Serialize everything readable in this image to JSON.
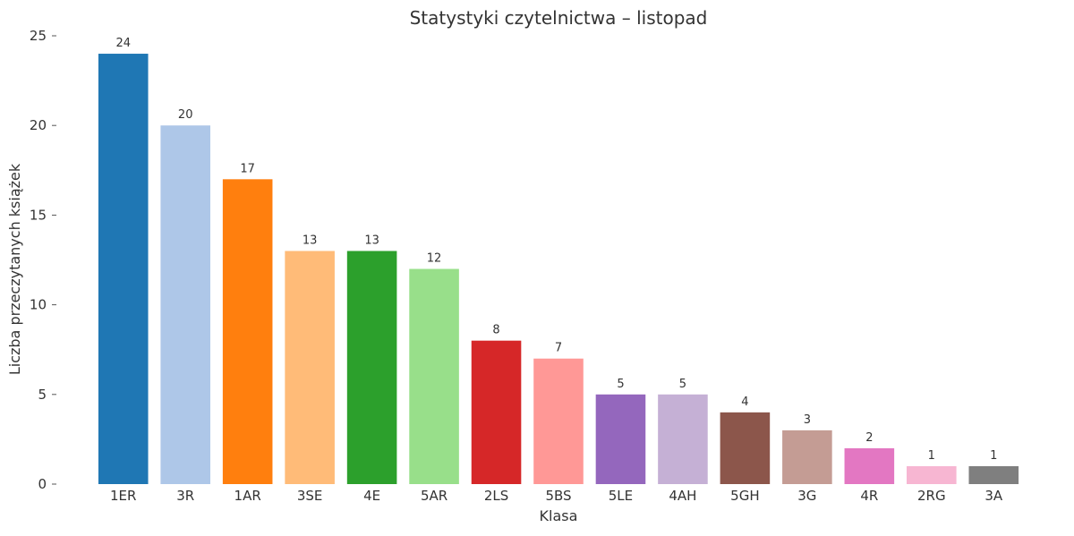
{
  "chart_data": {
    "type": "bar",
    "title": "Statystyki czytelnictwa – listopad",
    "xlabel": "Klasa",
    "ylabel": "Liczba przeczytanych książek",
    "categories": [
      "1ER",
      "3R",
      "1AR",
      "3SE",
      "4E",
      "5AR",
      "2LS",
      "5BS",
      "5LE",
      "4AH",
      "5GH",
      "3G",
      "4R",
      "2RG",
      "3A"
    ],
    "values": [
      24,
      20,
      17,
      13,
      13,
      12,
      8,
      7,
      5,
      5,
      4,
      3,
      2,
      1,
      1
    ],
    "colors": [
      "#1f77b4",
      "#aec7e8",
      "#ff7f0e",
      "#ffbb78",
      "#2ca02c",
      "#98df8a",
      "#d62728",
      "#ff9896",
      "#9467bd",
      "#c5b0d5",
      "#8c564b",
      "#c49c94",
      "#e377c2",
      "#f7b6d2",
      "#7f7f7f"
    ],
    "ylim": [
      0,
      25
    ],
    "yticks": [
      0,
      5,
      10,
      15,
      20,
      25
    ],
    "grid": false,
    "legend": false,
    "data_labels": true
  }
}
